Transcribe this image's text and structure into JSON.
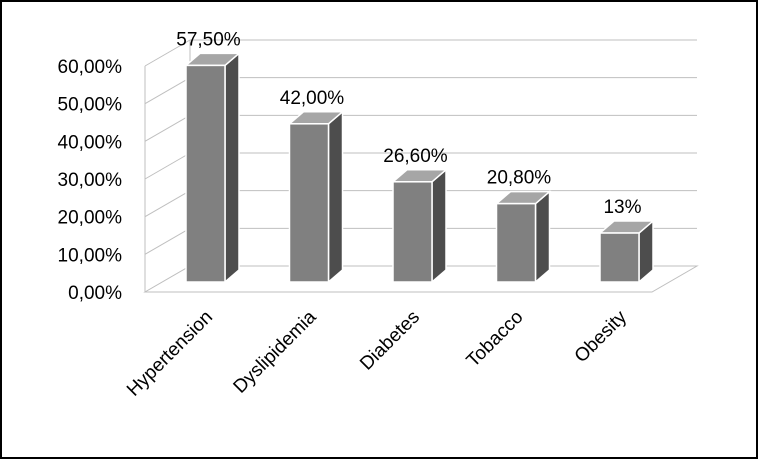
{
  "chart_data": {
    "type": "bar",
    "style": "3d-column",
    "categories": [
      "Hypertension",
      "Dyslipidemia",
      "Diabetes",
      "Tobacco",
      "Obesity"
    ],
    "values": [
      57.5,
      42.0,
      26.6,
      20.8,
      13.0
    ],
    "data_labels": [
      "57,50%",
      "42,00%",
      "26,60%",
      "20,80%",
      "13%"
    ],
    "y_ticks": [
      "0,00%",
      "10,00%",
      "20,00%",
      "30,00%",
      "40,00%",
      "50,00%",
      "60,00%"
    ],
    "ylim": [
      0,
      60
    ],
    "grid": true,
    "legend": "none",
    "colors": {
      "bar_front": "#808080",
      "bar_side": "#4d4d4d",
      "bar_top": "#a6a6a6",
      "bar_edge": "#ffffff",
      "grid": "#bfbfbf",
      "floor": "#ffffff"
    }
  }
}
